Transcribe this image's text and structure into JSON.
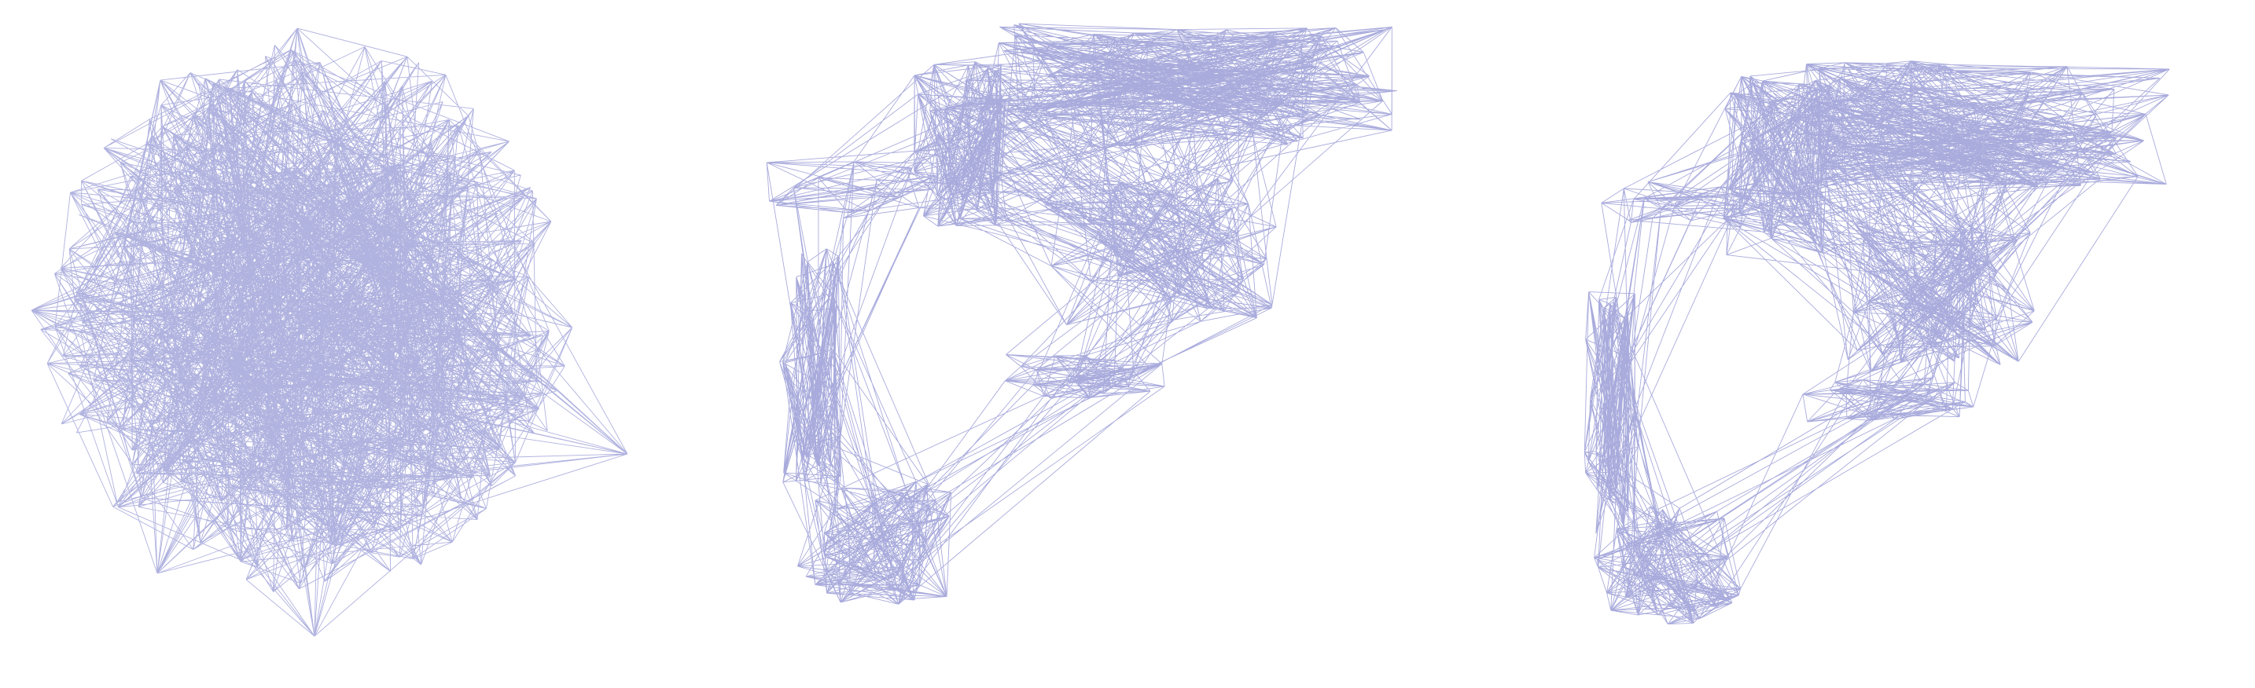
{
  "figure": {
    "edge_color": "#6f73c4",
    "background": "#ffffff",
    "panels": [
      {
        "id": "panel-a",
        "layout": "random-ball",
        "shown_edges": 2200
      },
      {
        "id": "panel-b",
        "layout": "manifold-unfolded",
        "shown_edges": 1500
      },
      {
        "id": "panel-c",
        "layout": "manifold-unfolded-variant",
        "shown_edges": 1500
      }
    ]
  }
}
